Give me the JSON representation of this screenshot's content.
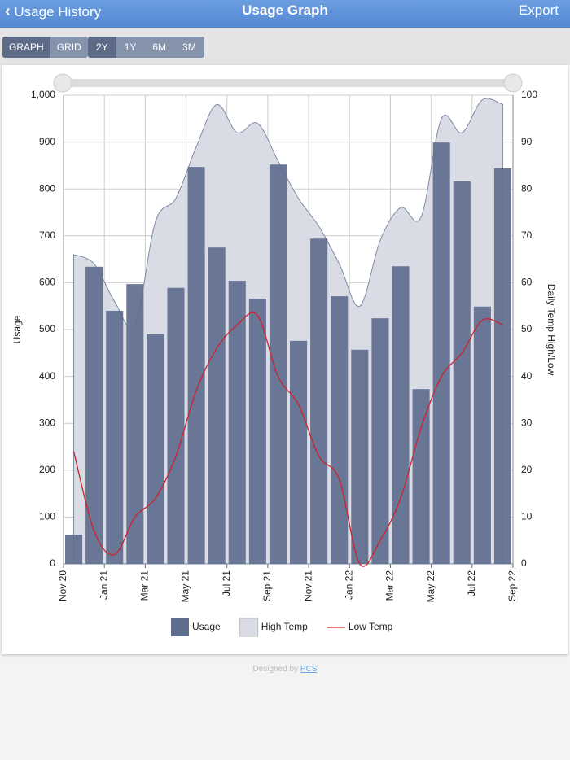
{
  "header": {
    "back": "Usage History",
    "title": "Usage Graph",
    "action": "Export"
  },
  "controls": {
    "view": [
      "GRAPH",
      "GRID"
    ],
    "range": [
      "2Y",
      "1Y",
      "6M",
      "3M"
    ]
  },
  "chart_data": {
    "type": "bar",
    "ylabel": "Usage",
    "y2label": "Daily Temp High/Low",
    "xticks": [
      "Nov 20",
      "Jan 21",
      "Mar 21",
      "May 21",
      "Jul 21",
      "Sep 21",
      "Nov 21",
      "Jan 22",
      "Mar 22",
      "May 22",
      "Jul 22",
      "Sep 22"
    ],
    "series": [
      {
        "name": "High Temp",
        "type": "area",
        "axis": "y2",
        "color": "#d9dce5",
        "values": [
          66,
          64,
          56,
          51,
          73,
          78,
          89,
          98,
          92,
          94,
          86,
          78,
          72,
          64,
          55,
          69,
          76,
          74,
          95,
          92,
          99,
          98
        ]
      },
      {
        "name": "Usage",
        "type": "bar",
        "color": "#5f6d8e",
        "values": [
          62,
          634,
          540,
          597,
          490,
          589,
          847,
          675,
          604,
          566,
          852,
          476,
          694,
          571,
          457,
          524,
          635,
          373,
          899,
          816,
          549,
          844
        ]
      },
      {
        "name": "Low Temp",
        "type": "line",
        "axis": "y2",
        "color": "#d0202a",
        "values": [
          24,
          7,
          2,
          10,
          14,
          23,
          37,
          46,
          51,
          53,
          40,
          34,
          23,
          18,
          0,
          5,
          14,
          29,
          40,
          45,
          52,
          51
        ]
      }
    ],
    "ylim": [
      0,
      1000
    ],
    "yticks": [
      0,
      100,
      200,
      300,
      400,
      500,
      600,
      700,
      800,
      900,
      {
        "value": 1000,
        "label": "1,000"
      }
    ],
    "y2lim": [
      0,
      100
    ],
    "y2ticks": [
      0,
      10,
      20,
      30,
      40,
      50,
      60,
      70,
      80,
      90,
      100
    ],
    "grid": true,
    "legend": "bottom"
  },
  "footer": {
    "text": "Designed by",
    "link": "PCS"
  }
}
